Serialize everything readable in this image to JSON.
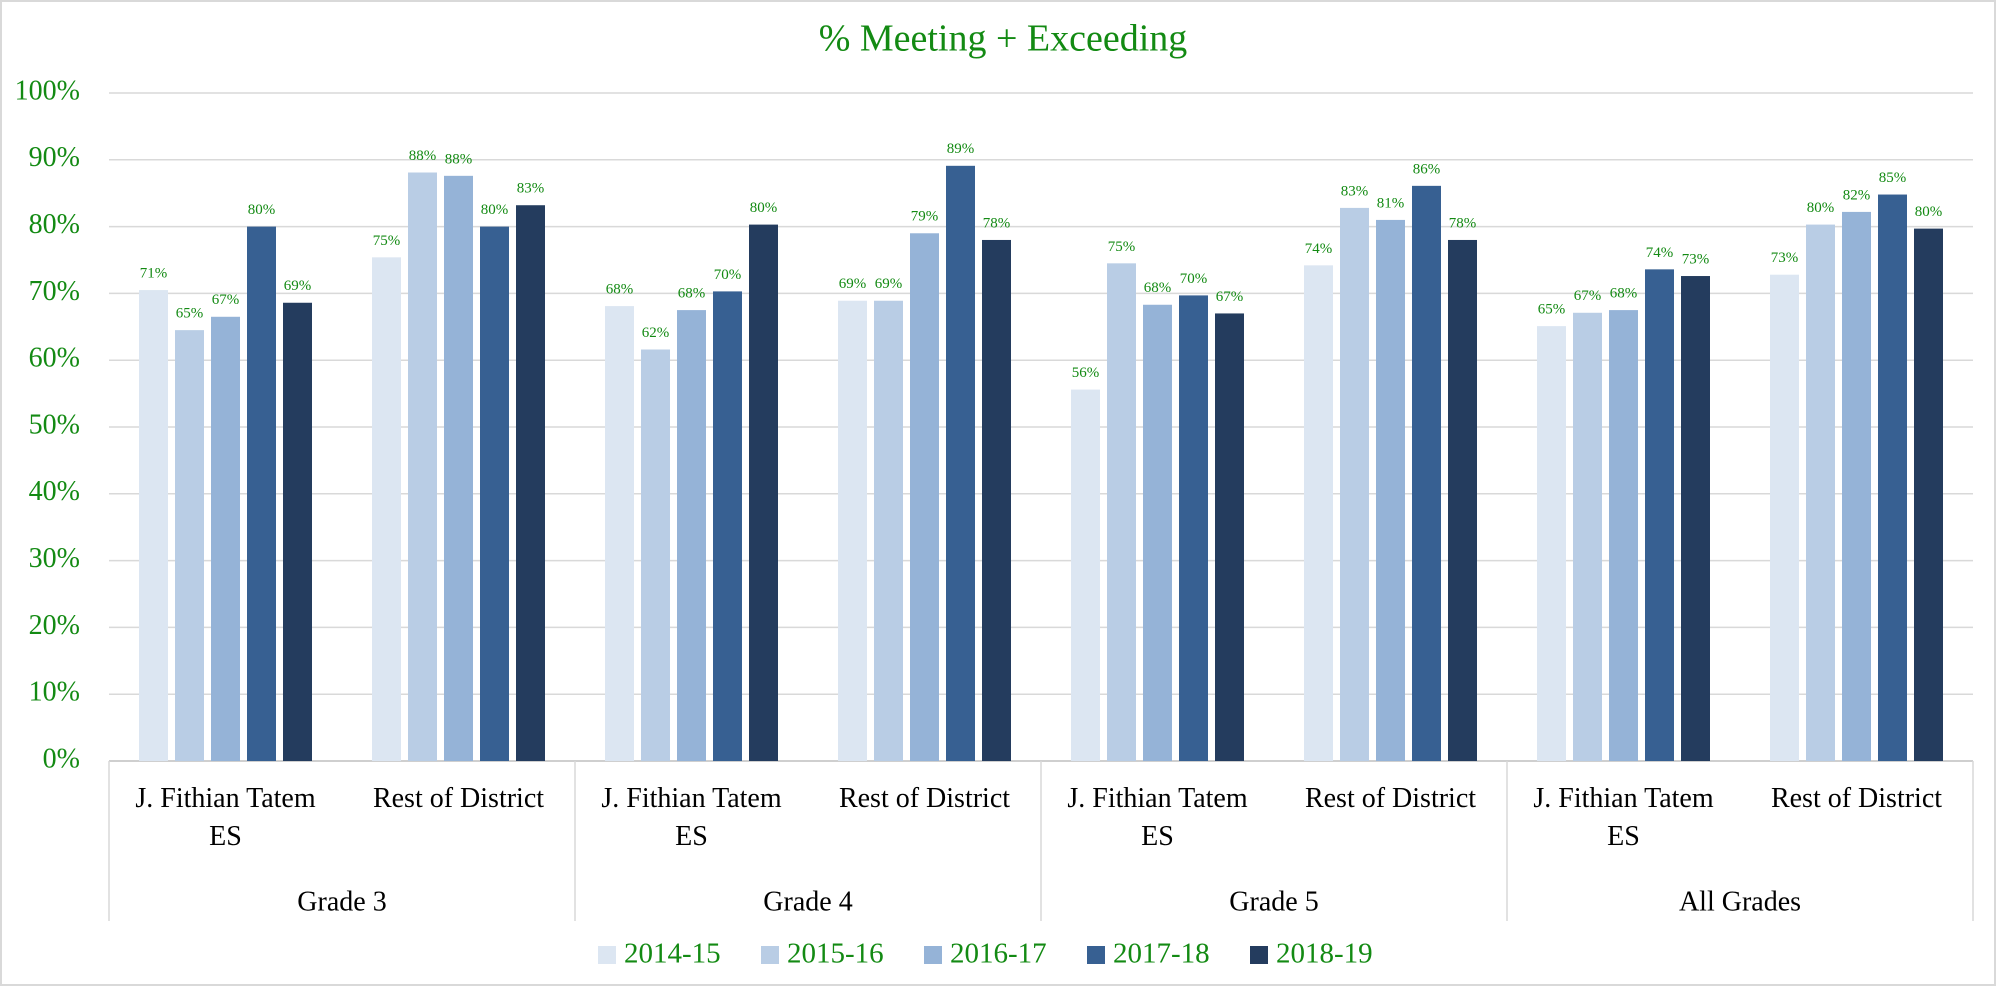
{
  "chart_data": {
    "type": "bar",
    "title": "% Meeting + Exceeding",
    "categories": [
      "J. Fithian Tatem ES",
      "Rest of District",
      "J. Fithian Tatem ES",
      "Rest of District",
      "J. Fithian Tatem ES",
      "Rest of District",
      "J. Fithian Tatem ES",
      "Rest of District"
    ],
    "groups": [
      "Grade 3",
      "Grade 4",
      "Grade 5",
      "All Grades"
    ],
    "series": [
      {
        "name": "2014-15",
        "color": "#dce6f2",
        "values": [
          70.5,
          75.4,
          68.1,
          68.9,
          55.6,
          74.2,
          65.1,
          72.8
        ],
        "value_labels": [
          "71%",
          "75%",
          "68%",
          "69%",
          "56%",
          "74%",
          "65%",
          "73%"
        ]
      },
      {
        "name": "2015-16",
        "color": "#b9cde5",
        "values": [
          64.5,
          88.1,
          61.6,
          68.9,
          74.5,
          82.8,
          67.1,
          80.3
        ],
        "value_labels": [
          "65%",
          "88%",
          "62%",
          "69%",
          "75%",
          "83%",
          "67%",
          "80%"
        ]
      },
      {
        "name": "2016-17",
        "color": "#95b3d7",
        "values": [
          66.5,
          87.6,
          67.5,
          79.0,
          68.3,
          81.0,
          67.5,
          82.2
        ],
        "value_labels": [
          "67%",
          "88%",
          "68%",
          "79%",
          "68%",
          "81%",
          "68%",
          "82%"
        ]
      },
      {
        "name": "2017-18",
        "color": "#376092",
        "values": [
          80.0,
          80.0,
          70.3,
          89.1,
          69.7,
          86.1,
          73.6,
          84.8
        ],
        "value_labels": [
          "80%",
          "80%",
          "70%",
          "89%",
          "70%",
          "86%",
          "74%",
          "85%"
        ]
      },
      {
        "name": "2018-19",
        "color": "#243c5e",
        "values": [
          68.6,
          83.2,
          80.3,
          78.0,
          67.0,
          78.0,
          72.6,
          79.7
        ],
        "value_labels": [
          "69%",
          "83%",
          "80%",
          "78%",
          "67%",
          "78%",
          "73%",
          "80%"
        ]
      }
    ],
    "ylim": [
      0,
      100
    ],
    "yticks": [
      {
        "value": 0,
        "label": "0%"
      },
      {
        "value": 10,
        "label": "10%"
      },
      {
        "value": 20,
        "label": "20%"
      },
      {
        "value": 30,
        "label": "30%"
      },
      {
        "value": 40,
        "label": "40%"
      },
      {
        "value": 50,
        "label": "50%"
      },
      {
        "value": 60,
        "label": "60%"
      },
      {
        "value": 70,
        "label": "70%"
      },
      {
        "value": 80,
        "label": "80%"
      },
      {
        "value": 90,
        "label": "90%"
      },
      {
        "value": 100,
        "label": "100%"
      }
    ],
    "grid": true,
    "legend": "bottom",
    "text_color": "#138a13"
  }
}
